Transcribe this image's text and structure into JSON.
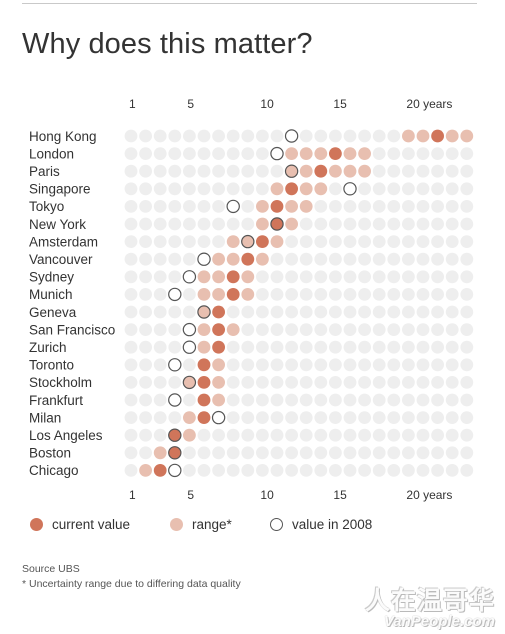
{
  "title": "Why does this matter?",
  "chart_data": {
    "type": "scatter",
    "x_ticks": [
      {
        "value": 1,
        "label": "1"
      },
      {
        "value": 5,
        "label": "5"
      },
      {
        "value": 10,
        "label": "10"
      },
      {
        "value": 15,
        "label": "15"
      },
      {
        "value": 20,
        "label": "20 years"
      }
    ],
    "xlim": [
      1,
      24
    ],
    "legend_placement": "bottom",
    "colors": {
      "current": "#d0755a",
      "range": "#e8bfb0",
      "empty": "#eeeeee",
      "outline": "#555555"
    },
    "cities": [
      {
        "name": "Hong Kong",
        "current": 22,
        "range": [
          20,
          24
        ],
        "y2008": 12
      },
      {
        "name": "London",
        "current": 15,
        "range": [
          12,
          17
        ],
        "y2008": 11
      },
      {
        "name": "Paris",
        "current": 14,
        "range": [
          12,
          17
        ],
        "y2008": 12
      },
      {
        "name": "Singapore",
        "current": 12,
        "range": [
          11,
          14
        ],
        "y2008": 16
      },
      {
        "name": "Tokyo",
        "current": 11,
        "range": [
          10,
          13
        ],
        "y2008": 8
      },
      {
        "name": "New York",
        "current": 11,
        "range": [
          10,
          12
        ],
        "y2008": 11
      },
      {
        "name": "Amsterdam",
        "current": 10,
        "range": [
          8,
          11
        ],
        "y2008": 9
      },
      {
        "name": "Vancouver",
        "current": 9,
        "range": [
          7,
          10
        ],
        "y2008": 6
      },
      {
        "name": "Sydney",
        "current": 8,
        "range": [
          6,
          9
        ],
        "y2008": 5
      },
      {
        "name": "Munich",
        "current": 8,
        "range": [
          6,
          9
        ],
        "y2008": 4
      },
      {
        "name": "Geneva",
        "current": 7,
        "range": [
          6,
          7
        ],
        "y2008": 6
      },
      {
        "name": "San Francisco",
        "current": 7,
        "range": [
          6,
          8
        ],
        "y2008": 5
      },
      {
        "name": "Zurich",
        "current": 7,
        "range": [
          6,
          7
        ],
        "y2008": 5
      },
      {
        "name": "Toronto",
        "current": 6,
        "range": [
          6,
          7
        ],
        "y2008": 4
      },
      {
        "name": "Stockholm",
        "current": 6,
        "range": [
          5,
          7
        ],
        "y2008": 5
      },
      {
        "name": "Frankfurt",
        "current": 6,
        "range": [
          6,
          7
        ],
        "y2008": 4
      },
      {
        "name": "Milan",
        "current": 6,
        "range": [
          5,
          6
        ],
        "y2008": 7
      },
      {
        "name": "Los Angeles",
        "current": 4,
        "range": [
          4,
          5
        ],
        "y2008": 4
      },
      {
        "name": "Boston",
        "current": 4,
        "range": [
          3,
          4
        ],
        "y2008": 4
      },
      {
        "name": "Chicago",
        "current": 3,
        "range": [
          2,
          3
        ],
        "y2008": 4
      }
    ]
  },
  "legend": {
    "current": "current value",
    "range": "range*",
    "y2008": "value in 2008"
  },
  "source": "Source UBS",
  "note": "* Uncertainty range due to differing data quality",
  "watermark": {
    "cn": "人在温哥华",
    "en": "VanPeople.com"
  }
}
